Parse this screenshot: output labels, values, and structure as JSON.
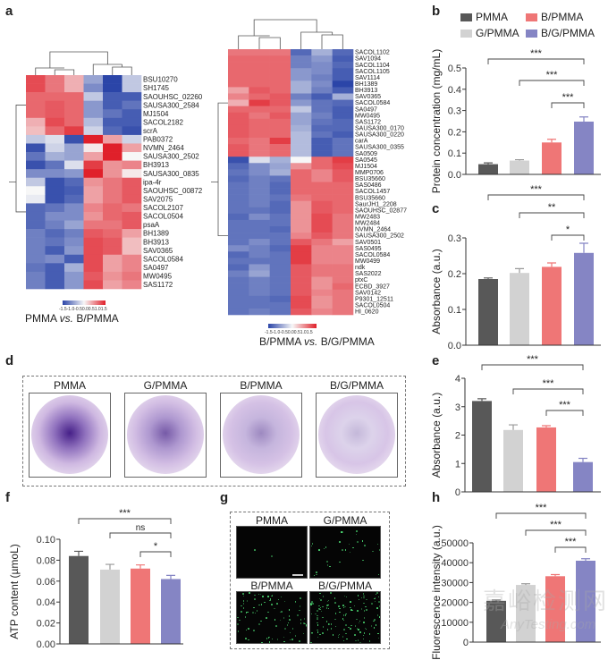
{
  "panels": {
    "a": "a",
    "b": "b",
    "c": "c",
    "d": "d",
    "e": "e",
    "f": "f",
    "g": "g",
    "h": "h"
  },
  "groups": [
    "PMMA",
    "G/PMMA",
    "B/PMMA",
    "B/G/PMMA"
  ],
  "colors": {
    "PMMA": "#585858",
    "G/PMMA": "#d2d2d2",
    "B/PMMA": "#ef7676",
    "B/G/PMMA": "#8585c4",
    "heat_low": "#2b45a8",
    "heat_mid": "#f7f7f7",
    "heat_high": "#e0202a"
  },
  "legend": [
    {
      "label": "PMMA",
      "color": "#585858"
    },
    {
      "label": "B/PMMA",
      "color": "#ef7676"
    },
    {
      "label": "G/PMMA",
      "color": "#d2d2d2"
    },
    {
      "label": "B/G/PMMA",
      "color": "#8585c4"
    }
  ],
  "panel_d": {
    "titles": [
      "PMMA",
      "G/PMMA",
      "B/PMMA",
      "B/G/PMMA"
    ]
  },
  "panel_g": {
    "titles": [
      "PMMA",
      "G/PMMA",
      "B/PMMA",
      "B/G/PMMA"
    ]
  },
  "watermark": {
    "cn": "嘉峪检测网",
    "en": "AnyTesting.com"
  },
  "chart_data": [
    {
      "id": "a_left",
      "type": "heatmap",
      "caption_prefix": "PMMA ",
      "caption_vs": "vs.",
      "caption_suffix": " B/PMMA",
      "scale_label": "-1.5-1.0-0.50.00.51.01.5",
      "scale_range": [
        -1.5,
        1.5
      ],
      "rows": [
        "BSU10270",
        "SH1745",
        "SAOUHSC_02260",
        "SAUSA300_2584",
        "MJ1504",
        "SACOL2182",
        "scrA",
        "PAB0372",
        "NVMN_2464",
        "SAUSA300_2502",
        "BH3913",
        "SAUSA300_0835",
        "ipa-4r",
        "SAOUHSC_00872",
        "SAV2075",
        "SACOL2107",
        "SACOL0504",
        "psaA",
        "BH1389",
        "BH3913",
        "SAV0365",
        "SACOL0584",
        "SA0497",
        "MW0495",
        "SAS1172"
      ],
      "values": [
        [
          1.2,
          0.9,
          0.5,
          -0.7,
          -1.5,
          -0.4
        ],
        [
          1.2,
          0.9,
          0.5,
          -0.9,
          -1.5,
          -0.4
        ],
        [
          1.0,
          1.0,
          1.0,
          -0.4,
          -1.3,
          -1.3
        ],
        [
          1.0,
          1.1,
          1.0,
          -0.8,
          -1.3,
          -1.1
        ],
        [
          1.0,
          1.1,
          1.0,
          -0.8,
          -1.1,
          -1.3
        ],
        [
          0.5,
          1.2,
          1.0,
          -0.5,
          -1.3,
          -1.3
        ],
        [
          0.4,
          1.0,
          1.3,
          -0.3,
          -1.2,
          -1.4
        ],
        [
          -0.4,
          -0.2,
          -1.4,
          1.5,
          0.6,
          -0.3
        ],
        [
          -1.4,
          -0.3,
          -0.7,
          0.1,
          1.5,
          0.6
        ],
        [
          -1.1,
          -0.6,
          -0.7,
          0.6,
          1.5,
          0.0
        ],
        [
          -1.4,
          -1.1,
          -0.2,
          1.3,
          0.7,
          0.8
        ],
        [
          -0.9,
          -0.9,
          -0.8,
          1.5,
          0.7,
          0.1
        ],
        [
          -0.4,
          -1.4,
          -1.2,
          0.7,
          0.9,
          1.1
        ],
        [
          0.0,
          -1.4,
          -1.3,
          0.6,
          0.9,
          1.1
        ],
        [
          -0.1,
          -1.4,
          -1.2,
          0.6,
          0.9,
          1.1
        ],
        [
          -1.2,
          -1.1,
          -0.9,
          0.8,
          1.0,
          0.9
        ],
        [
          -1.2,
          -0.9,
          -0.9,
          0.7,
          1.0,
          1.1
        ],
        [
          -1.2,
          -1.0,
          -0.7,
          0.9,
          0.9,
          1.1
        ],
        [
          -1.0,
          -1.2,
          -1.0,
          1.1,
          1.0,
          0.6
        ],
        [
          -1.0,
          -1.1,
          -0.9,
          1.2,
          1.1,
          0.4
        ],
        [
          -1.0,
          -1.3,
          -0.8,
          1.2,
          1.1,
          0.4
        ],
        [
          -1.0,
          -0.9,
          -1.3,
          1.2,
          0.6,
          0.8
        ],
        [
          -1.1,
          -1.3,
          -0.6,
          1.2,
          0.6,
          0.8
        ],
        [
          -1.0,
          -1.3,
          -0.8,
          1.1,
          0.7,
          0.9
        ],
        [
          -1.0,
          -1.3,
          -0.8,
          1.2,
          0.6,
          0.8
        ]
      ]
    },
    {
      "id": "a_right",
      "type": "heatmap",
      "caption_prefix": "B/PMMA ",
      "caption_vs": "vs.",
      "caption_suffix": " B/G/PMMA",
      "scale_label": "-1.5-1.0-0.50.00.51.01.5",
      "scale_range": [
        -1.5,
        1.5
      ],
      "rows": [
        "SACOL1102",
        "SAV1094",
        "SACOL1104",
        "SACOL1105",
        "SAV1114",
        "BH1389",
        "BH3913",
        "SAV0365",
        "SACOL0584",
        "SA0497",
        "MW0495",
        "SAS1172",
        "SAUSA300_0170",
        "SAUSA300_0220",
        "carA",
        "SAUSA300_0355",
        "SA0509",
        "SA0545",
        "MJ1504",
        "MMP0706",
        "BSU35660",
        "SAS0486",
        "SACOL1457",
        "BSU35660",
        "SaurJH1_2208",
        "SAOUHSC_02877",
        "MW2483",
        "MW2484",
        "NVMN_2464",
        "SAUSA300_2502",
        "SAV0501",
        "SAS0495",
        "SACOL0584",
        "MW0499",
        "ndk",
        "SAS2022",
        "ptxC",
        "ECBD_3927",
        "SAV0142",
        "P9301_12511",
        "SACOL0504",
        "HI_0620"
      ],
      "values": [
        [
          0.9,
          0.9,
          0.9,
          -1.2,
          -0.6,
          -1.2
        ],
        [
          1.0,
          1.0,
          1.0,
          -1.0,
          -0.8,
          -1.3
        ],
        [
          1.0,
          1.0,
          1.0,
          -1.0,
          -0.9,
          -1.2
        ],
        [
          1.0,
          1.0,
          1.0,
          -0.8,
          -0.9,
          -1.3
        ],
        [
          1.0,
          1.0,
          1.0,
          -0.8,
          -1.0,
          -1.3
        ],
        [
          1.0,
          1.0,
          1.0,
          -0.6,
          -0.9,
          -1.5
        ],
        [
          0.6,
          1.1,
          1.0,
          -0.6,
          -1.0,
          -1.3
        ],
        [
          0.8,
          1.0,
          1.1,
          -1.0,
          -1.3,
          -0.6
        ],
        [
          0.5,
          1.3,
          1.1,
          -0.8,
          -1.1,
          -1.2
        ],
        [
          1.0,
          1.0,
          1.0,
          -0.4,
          -1.1,
          -1.3
        ],
        [
          1.1,
          0.9,
          1.1,
          -0.7,
          -1.0,
          -1.3
        ],
        [
          1.1,
          1.0,
          1.0,
          -0.7,
          -1.1,
          -1.2
        ],
        [
          1.1,
          1.0,
          1.0,
          -0.6,
          -1.2,
          -1.2
        ],
        [
          1.1,
          1.0,
          1.0,
          -0.5,
          -1.1,
          -1.3
        ],
        [
          1.0,
          0.9,
          1.3,
          -0.5,
          -1.3,
          -1.1
        ],
        [
          1.1,
          0.9,
          1.0,
          -0.5,
          -1.3,
          -1.1
        ],
        [
          1.1,
          0.9,
          1.0,
          -0.5,
          -1.3,
          -1.1
        ],
        [
          -1.4,
          -0.2,
          -0.6,
          0.0,
          1.0,
          1.3
        ],
        [
          -1.2,
          -0.9,
          -0.7,
          0.7,
          1.0,
          1.2
        ],
        [
          -1.1,
          -0.9,
          -0.6,
          1.0,
          0.8,
          1.1
        ],
        [
          -1.2,
          -1.0,
          -1.1,
          1.0,
          0.8,
          1.1
        ],
        [
          -1.1,
          -1.0,
          -1.2,
          1.0,
          1.0,
          1.0
        ],
        [
          -1.1,
          -1.0,
          -1.2,
          1.0,
          1.0,
          1.0
        ],
        [
          -1.1,
          -1.0,
          -1.1,
          0.9,
          1.0,
          1.0
        ],
        [
          -1.1,
          -1.0,
          -1.2,
          0.7,
          1.1,
          1.0
        ],
        [
          -1.1,
          -1.1,
          -1.2,
          0.7,
          1.1,
          1.0
        ],
        [
          -1.2,
          -0.9,
          -1.1,
          0.7,
          1.2,
          0.9
        ],
        [
          -1.1,
          -1.1,
          -1.1,
          0.7,
          1.2,
          0.9
        ],
        [
          -1.1,
          -1.1,
          -1.2,
          0.7,
          1.2,
          0.9
        ],
        [
          -1.1,
          -1.1,
          -1.1,
          0.8,
          1.1,
          0.9
        ],
        [
          -1.1,
          -0.9,
          -1.1,
          1.1,
          0.9,
          0.6
        ],
        [
          -0.9,
          -1.0,
          -1.2,
          1.3,
          0.8,
          0.8
        ],
        [
          -1.2,
          -1.0,
          -1.1,
          1.3,
          0.8,
          0.8
        ],
        [
          -1.1,
          -1.1,
          -1.1,
          1.3,
          0.8,
          0.8
        ],
        [
          -1.2,
          -0.8,
          -1.1,
          1.1,
          0.9,
          0.9
        ],
        [
          -1.0,
          -0.7,
          -1.1,
          1.1,
          0.9,
          0.9
        ],
        [
          -1.1,
          -1.0,
          -1.1,
          1.1,
          0.7,
          0.9
        ],
        [
          -1.1,
          -1.0,
          -1.1,
          1.1,
          0.7,
          1.0
        ],
        [
          -1.1,
          -1.0,
          -1.1,
          1.1,
          0.8,
          0.9
        ],
        [
          -1.1,
          -1.1,
          -1.2,
          1.2,
          0.7,
          0.9
        ],
        [
          -1.1,
          -1.1,
          -1.1,
          1.2,
          0.7,
          0.9
        ],
        [
          -1.1,
          -1.0,
          -1.1,
          1.1,
          0.8,
          0.9
        ]
      ]
    },
    {
      "id": "b",
      "type": "bar",
      "categories": [
        "PMMA",
        "G/PMMA",
        "B/PMMA",
        "B/G/PMMA"
      ],
      "values": [
        0.048,
        0.065,
        0.15,
        0.248
      ],
      "errors": [
        0.006,
        0.004,
        0.015,
        0.022
      ],
      "ylabel": "Protein concentration (mg/mL)",
      "ylim": [
        0,
        0.5
      ],
      "yticks": [
        "0.0",
        "0.1",
        "0.2",
        "0.3",
        "0.4",
        "0.5"
      ],
      "significance": [
        {
          "pair": [
            0,
            3
          ],
          "label": "***"
        },
        {
          "pair": [
            1,
            3
          ],
          "label": "***"
        },
        {
          "pair": [
            2,
            3
          ],
          "label": "***"
        }
      ]
    },
    {
      "id": "c",
      "type": "bar",
      "categories": [
        "PMMA",
        "G/PMMA",
        "B/PMMA",
        "B/G/PMMA"
      ],
      "values": [
        0.185,
        0.202,
        0.219,
        0.258
      ],
      "errors": [
        0.003,
        0.012,
        0.011,
        0.027
      ],
      "ylabel": "Absorbance (a.u.)",
      "ylim": [
        0,
        0.3
      ],
      "yticks": [
        "0.0",
        "0.1",
        "0.2",
        "0.3"
      ],
      "significance": [
        {
          "pair": [
            0,
            3
          ],
          "label": "***"
        },
        {
          "pair": [
            1,
            3
          ],
          "label": "**"
        },
        {
          "pair": [
            2,
            3
          ],
          "label": "*"
        }
      ]
    },
    {
      "id": "e",
      "type": "bar",
      "categories": [
        "PMMA",
        "G/PMMA",
        "B/PMMA",
        "B/G/PMMA"
      ],
      "values": [
        3.2,
        2.18,
        2.27,
        1.05
      ],
      "errors": [
        0.08,
        0.18,
        0.06,
        0.13
      ],
      "ylabel": "Absorbance (a.u.)",
      "ylim": [
        0,
        4
      ],
      "yticks": [
        "0",
        "1",
        "2",
        "3",
        "4"
      ],
      "significance": [
        {
          "pair": [
            0,
            3
          ],
          "label": "***"
        },
        {
          "pair": [
            1,
            3
          ],
          "label": "***"
        },
        {
          "pair": [
            2,
            3
          ],
          "label": "***"
        }
      ]
    },
    {
      "id": "f",
      "type": "bar",
      "categories": [
        "PMMA",
        "G/PMMA",
        "B/PMMA",
        "B/G/PMMA"
      ],
      "values": [
        0.084,
        0.071,
        0.072,
        0.062
      ],
      "errors": [
        0.0045,
        0.005,
        0.0035,
        0.0035
      ],
      "ylabel": "ATP content (µmoL)",
      "ylim": [
        0,
        0.1
      ],
      "yticks": [
        "0.00",
        "0.02",
        "0.04",
        "0.06",
        "0.08",
        "0.10"
      ],
      "significance": [
        {
          "pair": [
            0,
            3
          ],
          "label": "***"
        },
        {
          "pair": [
            1,
            3
          ],
          "label": "ns"
        },
        {
          "pair": [
            2,
            3
          ],
          "label": "*"
        }
      ]
    },
    {
      "id": "h",
      "type": "bar",
      "categories": [
        "PMMA",
        "G/PMMA",
        "B/PMMA",
        "B/G/PMMA"
      ],
      "values": [
        20800,
        28800,
        33200,
        41000
      ],
      "errors": [
        400,
        600,
        800,
        1000
      ],
      "ylabel": "Fluorescence intensity (a.u.)",
      "ylim": [
        0,
        50000
      ],
      "yticks": [
        "0",
        "10000",
        "20000",
        "30000",
        "40000",
        "50000"
      ],
      "significance": [
        {
          "pair": [
            0,
            3
          ],
          "label": "***"
        },
        {
          "pair": [
            1,
            3
          ],
          "label": "***"
        },
        {
          "pair": [
            2,
            3
          ],
          "label": "***"
        }
      ]
    }
  ]
}
